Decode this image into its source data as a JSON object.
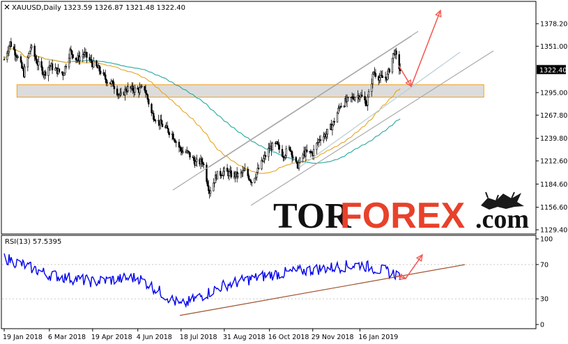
{
  "header": {
    "symbol_line": "XAUUSD,Daily  1323.59  1326.87  1321.48  1322.40",
    "rsi_label": "RSI(13) 57.5395"
  },
  "logo": {
    "part1": "TOR",
    "part2": "FOREX",
    "part3": ".com"
  },
  "colors": {
    "up_candle": "#000000",
    "ma_fast": "#e8a41c",
    "ma_slow": "#25a7a0",
    "channel": "#a9a9a9",
    "support_zone_fill": "#d6d6d6",
    "support_zone_border": "#f0a020",
    "arrow": "#f25c54",
    "rsi_line": "#0000ee",
    "rsi_trend": "#a0522d"
  },
  "chart_data": [
    {
      "type": "candlestick",
      "title": "XAUUSD,Daily",
      "ohlc_last": {
        "open": 1323.59,
        "high": 1326.87,
        "low": 1321.48,
        "close": 1322.4
      },
      "current_price_label": "1322.40",
      "ylim": [
        1129.4,
        1392.0
      ],
      "y_tick_labels": [
        "1378.20",
        "1351.00",
        "1322.40",
        "1295.00",
        "1267.80",
        "1239.80",
        "1212.60",
        "1184.60",
        "1156.60",
        "1129.40"
      ],
      "x_tick_labels": [
        "19 Jan 2018",
        "6 Mar 2018",
        "19 Apr 2018",
        "4 Jun 2018",
        "18 Jul 2018",
        "31 Aug 2018",
        "16 Oct 2018",
        "29 Nov 2018",
        "16 Jan 2019"
      ],
      "close_path": [
        [
          "19 Jan 2018",
          1335
        ],
        [
          "25 Jan 2018",
          1355
        ],
        [
          "1 Feb 2018",
          1340
        ],
        [
          "8 Feb 2018",
          1318
        ],
        [
          "15 Feb 2018",
          1350
        ],
        [
          "22 Feb 2018",
          1330
        ],
        [
          "1 Mar 2018",
          1318
        ],
        [
          "6 Mar 2018",
          1328
        ],
        [
          "13 Mar 2018",
          1322
        ],
        [
          "20 Mar 2018",
          1318
        ],
        [
          "27 Mar 2018",
          1345
        ],
        [
          "3 Apr 2018",
          1335
        ],
        [
          "10 Apr 2018",
          1342
        ],
        [
          "19 Apr 2018",
          1330
        ],
        [
          "26 Apr 2018",
          1322
        ],
        [
          "3 May 2018",
          1310
        ],
        [
          "10 May 2018",
          1305
        ],
        [
          "17 May 2018",
          1290
        ],
        [
          "24 May 2018",
          1300
        ],
        [
          "4 Jun 2018",
          1298
        ],
        [
          "11 Jun 2018",
          1300
        ],
        [
          "18 Jun 2018",
          1270
        ],
        [
          "25 Jun 2018",
          1260
        ],
        [
          "2 Jul 2018",
          1252
        ],
        [
          "9 Jul 2018",
          1245
        ],
        [
          "18 Jul 2018",
          1225
        ],
        [
          "25 Jul 2018",
          1222
        ],
        [
          "2 Aug 2018",
          1210
        ],
        [
          "9 Aug 2018",
          1212
        ],
        [
          "16 Aug 2018",
          1176
        ],
        [
          "23 Aug 2018",
          1195
        ],
        [
          "31 Aug 2018",
          1200
        ],
        [
          "7 Sep 2018",
          1196
        ],
        [
          "14 Sep 2018",
          1195
        ],
        [
          "21 Sep 2018",
          1200
        ],
        [
          "28 Sep 2018",
          1188
        ],
        [
          "5 Oct 2018",
          1203
        ],
        [
          "16 Oct 2018",
          1228
        ],
        [
          "23 Oct 2018",
          1232
        ],
        [
          "30 Oct 2018",
          1220
        ],
        [
          "6 Nov 2018",
          1228
        ],
        [
          "13 Nov 2018",
          1205
        ],
        [
          "20 Nov 2018",
          1222
        ],
        [
          "29 Nov 2018",
          1222
        ],
        [
          "6 Dec 2018",
          1240
        ],
        [
          "13 Dec 2018",
          1245
        ],
        [
          "20 Dec 2018",
          1258
        ],
        [
          "27 Dec 2018",
          1280
        ],
        [
          "3 Jan 2019",
          1285
        ],
        [
          "10 Jan 2019",
          1290
        ],
        [
          "16 Jan 2019",
          1292
        ],
        [
          "23 Jan 2019",
          1282
        ],
        [
          "30 Jan 2019",
          1320
        ],
        [
          "6 Feb 2019",
          1312
        ],
        [
          "13 Feb 2019",
          1315
        ],
        [
          "20 Feb 2019",
          1345
        ],
        [
          "26 Feb 2019",
          1322
        ]
      ],
      "support_zone": [
        1289.5,
        1304.5
      ],
      "indicators": [
        "moving average (fast)",
        "moving average (slow)"
      ],
      "grid": false
    },
    {
      "type": "line",
      "title": "RSI(13)",
      "current_value": 57.5395,
      "ylim": [
        0,
        100
      ],
      "y_tick_labels": [
        "100",
        "70",
        "30",
        "0"
      ],
      "series_path": [
        [
          "19 Jan 2018",
          78
        ],
        [
          "6 Mar 2018",
          58
        ],
        [
          "19 Apr 2018",
          50
        ],
        [
          "4 Jun 2018",
          55
        ],
        [
          "18 Jul 2018",
          22
        ],
        [
          "31 Aug 2018",
          46
        ],
        [
          "16 Oct 2018",
          58
        ],
        [
          "29 Nov 2018",
          64
        ],
        [
          "16 Jan 2019",
          70
        ],
        [
          "26 Feb 2019",
          57.5
        ]
      ],
      "trendline": true
    }
  ]
}
